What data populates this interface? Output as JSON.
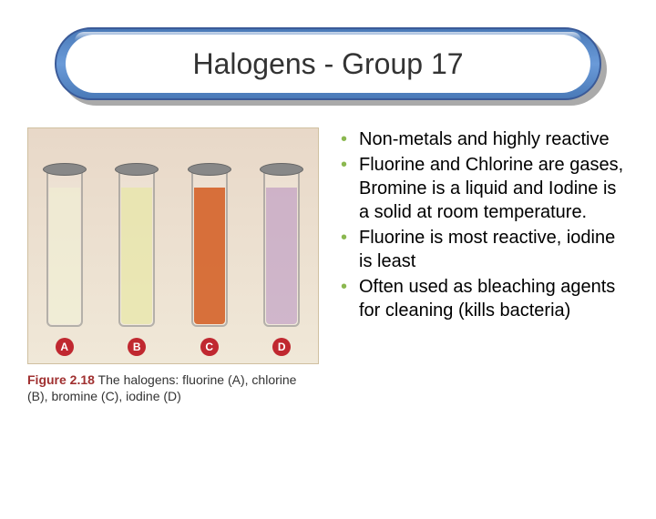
{
  "title": "Halogens - Group 17",
  "bullets": [
    "Non-metals and highly reactive",
    "Fluorine and Chlorine are gases, Bromine is a liquid and Iodine is a solid at room temperature.",
    "Fluorine is most reactive, iodine is least",
    "Often used as bleaching agents for cleaning (kills bacteria)"
  ],
  "bullet_color": "#8bb850",
  "figure": {
    "tubes": [
      {
        "label": "A",
        "badge_color": "#c02830",
        "fill_color": "rgba(240,240,210,0.55)",
        "fill_height": 150
      },
      {
        "label": "B",
        "badge_color": "#c02830",
        "fill_color": "rgba(230,230,160,0.65)",
        "fill_height": 150
      },
      {
        "label": "C",
        "badge_color": "#c02830",
        "fill_color": "rgba(210,90,30,0.85)",
        "fill_height": 150
      },
      {
        "label": "D",
        "badge_color": "#c02830",
        "fill_color": "rgba(180,140,190,0.55)",
        "fill_height": 150
      }
    ],
    "caption_prefix": "Figure 2.18",
    "caption_rest": "  The halogens: fluorine (A), chlorine (B), bromine (C), iodine (D)"
  }
}
